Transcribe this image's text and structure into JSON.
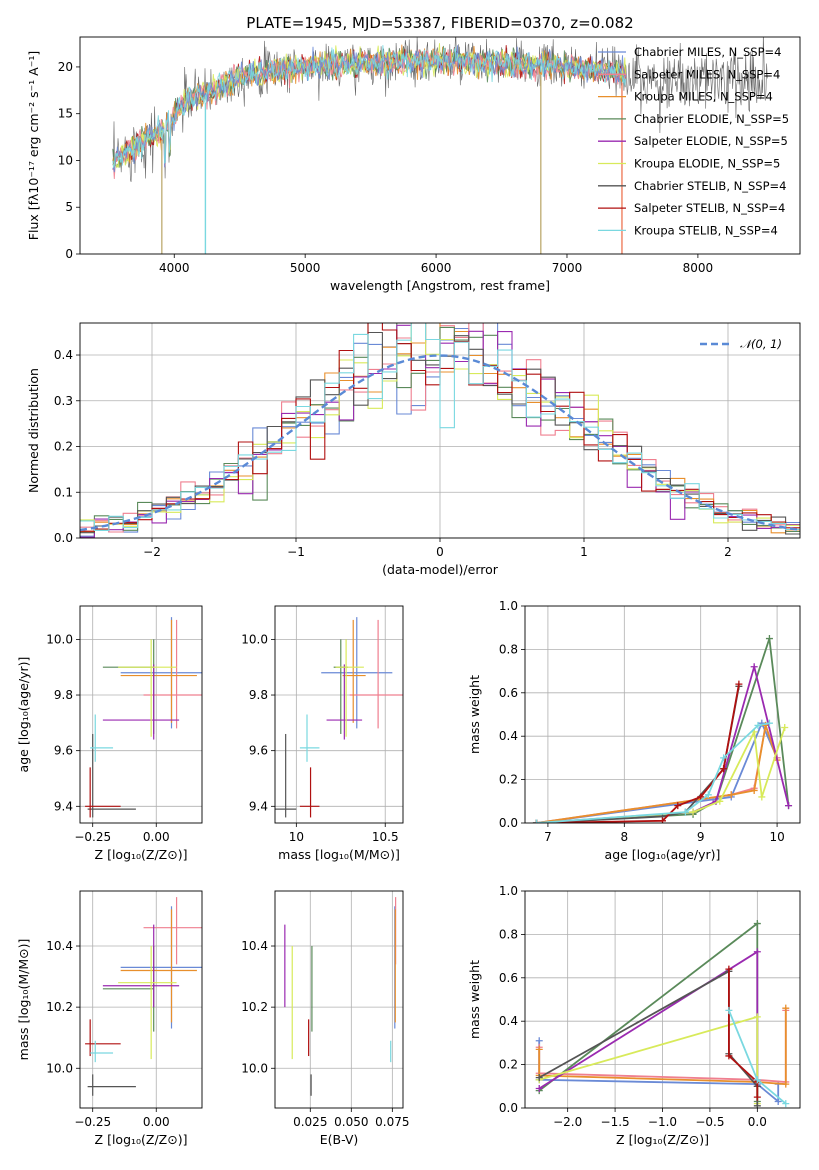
{
  "figure_title": "PLATE=1945, MJD=53387, FIBERID=0370, z=0.082",
  "colors": {
    "chabrier_miles": "#6a8ad6",
    "salpeter_miles": "#ef7f8f",
    "kroupa_miles": "#e88f2c",
    "chabrier_elodie": "#5a8a5a",
    "salpeter_elodie": "#9a2ab0",
    "kroupa_elodie": "#d8ea5a",
    "chabrier_stelib": "#555555",
    "salpeter_stelib": "#b01010",
    "kroupa_stelib": "#7ad8e0",
    "normal_curve": "#5a8ad6"
  },
  "chart_data": [
    {
      "type": "line",
      "title": "PLATE=1945, MJD=53387, FIBERID=0370, z=0.082",
      "xlabel": "wavelength [Angstrom, rest frame]",
      "ylabel": "Flux [fλ10⁻¹⁷ erg cm⁻² s⁻¹ A⁻¹]",
      "xlim": [
        3280,
        8780
      ],
      "ylim": [
        0,
        23.2
      ],
      "xticks": [
        "4000",
        "5000",
        "6000",
        "7000",
        "8000"
      ],
      "yticks": [
        "0",
        "5",
        "10",
        "15",
        "20"
      ],
      "legend_position": "right",
      "series": [
        {
          "name": "Chabrier MILES, N_SSP=4",
          "color_key": "chabrier_miles"
        },
        {
          "name": "Salpeter MILES, N_SSP=4",
          "color_key": "salpeter_miles"
        },
        {
          "name": "Kroupa MILES, N_SSP=4",
          "color_key": "kroupa_miles"
        },
        {
          "name": "Chabrier ELODIE, N_SSP=5",
          "color_key": "chabrier_elodie"
        },
        {
          "name": "Salpeter ELODIE, N_SSP=5",
          "color_key": "salpeter_elodie"
        },
        {
          "name": "Kroupa ELODIE, N_SSP=5",
          "color_key": "kroupa_elodie"
        },
        {
          "name": "Chabrier STELIB, N_SSP=4",
          "color_key": "chabrier_stelib"
        },
        {
          "name": "Salpeter STELIB, N_SSP=4",
          "color_key": "salpeter_stelib"
        },
        {
          "name": "Kroupa STELIB, N_SSP=4",
          "color_key": "kroupa_stelib"
        }
      ],
      "spectrum_continuum": {
        "x": [
          3530,
          3600,
          3700,
          3800,
          3900,
          4000,
          4100,
          4300,
          4500,
          4700,
          5000,
          5300,
          5600,
          5900,
          6200,
          6500,
          6800,
          7000,
          7200,
          7450
        ],
        "y": [
          9.5,
          10.5,
          11.5,
          12.5,
          13.0,
          15.0,
          16.5,
          17.5,
          19.0,
          19.5,
          20.0,
          20.3,
          20.5,
          20.7,
          20.6,
          20.3,
          20.2,
          20.0,
          19.7,
          19.3
        ]
      },
      "sky_lines": {
        "x": [
          3905,
          4238,
          6800,
          7420
        ]
      },
      "observed_extent": {
        "x": [
          3530,
          8530
        ]
      }
    },
    {
      "type": "histogram",
      "xlabel": "(data-model)/error",
      "ylabel": "Normed distribution",
      "xlim": [
        -2.5,
        2.5
      ],
      "ylim": [
        0,
        0.47
      ],
      "xticks": [
        "−2",
        "−1",
        "0",
        "1",
        "2"
      ],
      "yticks": [
        "0.0",
        "0.1",
        "0.2",
        "0.3",
        "0.4"
      ],
      "legend": "𝒩(0, 1)",
      "legend_position": "top-right",
      "bin_width": 0.1,
      "bin_start": -2.5
    },
    {
      "type": "scatter",
      "xlabel": "Z [log₁₀(Z/Z⊙)]",
      "ylabel": "age  [log₁₀(age/yr)]",
      "xlim": [
        -0.3,
        0.18
      ],
      "ylim": [
        9.34,
        10.12
      ],
      "xticks": [
        "−0.25",
        "0.00"
      ],
      "yticks": [
        "9.4",
        "9.6",
        "9.8",
        "10.0"
      ],
      "points": [
        {
          "x": 0.06,
          "y": 9.88,
          "xerr": [
            0.2,
            0.25
          ],
          "yerr": [
            0.2,
            0.2
          ],
          "c": "chabrier_miles"
        },
        {
          "x": 0.08,
          "y": 9.8,
          "xerr": [
            0.13,
            0.13
          ],
          "yerr": [
            0.12,
            0.27
          ],
          "c": "salpeter_miles"
        },
        {
          "x": 0.06,
          "y": 9.87,
          "xerr": [
            0.2,
            0.1
          ],
          "yerr": [
            0.17,
            0.2
          ],
          "c": "kroupa_miles"
        },
        {
          "x": -0.01,
          "y": 9.9,
          "xerr": [
            0.2,
            0.0
          ],
          "yerr": [
            0.24,
            0.1
          ],
          "c": "chabrier_elodie"
        },
        {
          "x": -0.01,
          "y": 9.71,
          "xerr": [
            0.2,
            0.1
          ],
          "yerr": [
            0.07,
            0.2
          ],
          "c": "salpeter_elodie"
        },
        {
          "x": -0.02,
          "y": 9.9,
          "xerr": [
            0.13,
            0.1
          ],
          "yerr": [
            0.25,
            0.1
          ],
          "c": "kroupa_elodie"
        },
        {
          "x": -0.25,
          "y": 9.39,
          "xerr": [
            0.02,
            0.17
          ],
          "yerr": [
            0.03,
            0.27
          ],
          "c": "chabrier_stelib"
        },
        {
          "x": -0.26,
          "y": 9.4,
          "xerr": [
            0.02,
            0.12
          ],
          "yerr": [
            0.04,
            0.14
          ],
          "c": "salpeter_stelib"
        },
        {
          "x": -0.24,
          "y": 9.61,
          "xerr": [
            0.02,
            0.07
          ],
          "yerr": [
            0.05,
            0.12
          ],
          "c": "kroupa_stelib"
        }
      ]
    },
    {
      "type": "scatter",
      "xlabel": "mass [log₁₀(M/M⊙)]",
      "ylabel": "",
      "xlim": [
        9.88,
        10.6
      ],
      "ylim": [
        9.34,
        10.12
      ],
      "xticks": [
        "10",
        "10.5"
      ],
      "yticks": [
        "9.4",
        "9.6",
        "9.8",
        "10.0"
      ],
      "points": [
        {
          "x": 10.34,
          "y": 9.88,
          "xerr": [
            0.2,
            0.2
          ],
          "yerr": [
            0.2,
            0.2
          ],
          "c": "chabrier_miles"
        },
        {
          "x": 10.46,
          "y": 9.8,
          "xerr": [
            0.16,
            0.14
          ],
          "yerr": [
            0.12,
            0.27
          ],
          "c": "salpeter_miles"
        },
        {
          "x": 10.32,
          "y": 9.87,
          "xerr": [
            0.06,
            0.07
          ],
          "yerr": [
            0.17,
            0.2
          ],
          "c": "kroupa_miles"
        },
        {
          "x": 10.25,
          "y": 9.9,
          "xerr": [
            0.04,
            0.04
          ],
          "yerr": [
            0.24,
            0.1
          ],
          "c": "chabrier_elodie"
        },
        {
          "x": 10.27,
          "y": 9.71,
          "xerr": [
            0.1,
            0.1
          ],
          "yerr": [
            0.07,
            0.2
          ],
          "c": "salpeter_elodie"
        },
        {
          "x": 10.28,
          "y": 9.9,
          "xerr": [
            0.06,
            0.1
          ],
          "yerr": [
            0.25,
            0.1
          ],
          "c": "kroupa_elodie"
        },
        {
          "x": 9.94,
          "y": 9.39,
          "xerr": [
            0.07,
            0.06
          ],
          "yerr": [
            0.03,
            0.27
          ],
          "c": "chabrier_stelib"
        },
        {
          "x": 10.08,
          "y": 9.4,
          "xerr": [
            0.06,
            0.05
          ],
          "yerr": [
            0.04,
            0.14
          ],
          "c": "salpeter_stelib"
        },
        {
          "x": 10.06,
          "y": 9.61,
          "xerr": [
            0.04,
            0.07
          ],
          "yerr": [
            0.05,
            0.12
          ],
          "c": "kroupa_stelib"
        }
      ]
    },
    {
      "type": "line",
      "xlabel": "age  [log₁₀(age/yr)]",
      "ylabel": "mass weight",
      "xlim": [
        6.7,
        10.3
      ],
      "ylim": [
        0,
        1.0
      ],
      "xticks": [
        "7",
        "8",
        "9",
        "10"
      ],
      "yticks": [
        "0.0",
        "0.2",
        "0.4",
        "0.6",
        "0.8",
        "1.0"
      ],
      "series": [
        {
          "c": "chabrier_miles",
          "x": [
            6.85,
            9.4,
            9.8,
            10.0
          ],
          "y": [
            0.0,
            0.12,
            0.46,
            0.3
          ]
        },
        {
          "c": "salpeter_miles",
          "x": [
            6.85,
            9.4,
            9.7,
            9.85,
            10.0
          ],
          "y": [
            0.0,
            0.13,
            0.16,
            0.45,
            0.3
          ]
        },
        {
          "c": "kroupa_miles",
          "x": [
            6.85,
            9.4,
            9.7,
            9.85,
            10.0
          ],
          "y": [
            0.0,
            0.13,
            0.15,
            0.45,
            0.29
          ]
        },
        {
          "c": "chabrier_elodie",
          "x": [
            6.85,
            8.9,
            9.2,
            9.9,
            10.15
          ],
          "y": [
            0.0,
            0.04,
            0.1,
            0.85,
            0.08
          ]
        },
        {
          "c": "salpeter_elodie",
          "x": [
            6.85,
            8.9,
            9.2,
            9.7,
            10.15
          ],
          "y": [
            0.0,
            0.05,
            0.1,
            0.72,
            0.08
          ]
        },
        {
          "c": "kroupa_elodie",
          "x": [
            6.85,
            8.9,
            9.25,
            9.7,
            9.8,
            10.1
          ],
          "y": [
            0.0,
            0.05,
            0.1,
            0.42,
            0.12,
            0.44
          ]
        },
        {
          "c": "chabrier_stelib",
          "x": [
            6.85,
            8.5,
            8.8,
            9.3,
            9.5
          ],
          "y": [
            0.0,
            0.03,
            0.05,
            0.25,
            0.63
          ]
        },
        {
          "c": "salpeter_stelib",
          "x": [
            6.85,
            8.5,
            8.7,
            9.0,
            9.3,
            9.5
          ],
          "y": [
            0.0,
            0.01,
            0.08,
            0.12,
            0.25,
            0.64
          ]
        },
        {
          "c": "kroupa_stelib",
          "x": [
            6.85,
            8.8,
            9.1,
            9.3,
            9.75,
            9.9
          ],
          "y": [
            0.0,
            0.05,
            0.13,
            0.3,
            0.45,
            0.46
          ]
        }
      ]
    },
    {
      "type": "scatter",
      "xlabel": "Z [log₁₀(Z/Z⊙)]",
      "ylabel": "mass [log₁₀(M/M⊙)]",
      "xlim": [
        -0.3,
        0.18
      ],
      "ylim": [
        9.87,
        10.58
      ],
      "xticks": [
        "−0.25",
        "0.00"
      ],
      "yticks": [
        "10.0",
        "10.2",
        "10.4"
      ],
      "points": [
        {
          "x": 0.06,
          "y": 10.33,
          "xerr": [
            0.2,
            0.25
          ],
          "yerr": [
            0.2,
            0.2
          ],
          "c": "chabrier_miles"
        },
        {
          "x": 0.08,
          "y": 10.46,
          "xerr": [
            0.13,
            0.13
          ],
          "yerr": [
            0.12,
            0.1
          ],
          "c": "salpeter_miles"
        },
        {
          "x": 0.06,
          "y": 10.32,
          "xerr": [
            0.2,
            0.1
          ],
          "yerr": [
            0.17,
            0.2
          ],
          "c": "kroupa_miles"
        },
        {
          "x": -0.01,
          "y": 10.26,
          "xerr": [
            0.2,
            0.0
          ],
          "yerr": [
            0.14,
            0.14
          ],
          "c": "chabrier_elodie"
        },
        {
          "x": -0.01,
          "y": 10.27,
          "xerr": [
            0.2,
            0.1
          ],
          "yerr": [
            0.07,
            0.2
          ],
          "c": "salpeter_elodie"
        },
        {
          "x": -0.02,
          "y": 10.28,
          "xerr": [
            0.13,
            0.1
          ],
          "yerr": [
            0.25,
            0.12
          ],
          "c": "kroupa_elodie"
        },
        {
          "x": -0.25,
          "y": 9.94,
          "xerr": [
            0.02,
            0.17
          ],
          "yerr": [
            0.03,
            0.04
          ],
          "c": "chabrier_stelib"
        },
        {
          "x": -0.26,
          "y": 10.08,
          "xerr": [
            0.02,
            0.12
          ],
          "yerr": [
            0.04,
            0.08
          ],
          "c": "salpeter_stelib"
        },
        {
          "x": -0.24,
          "y": 10.05,
          "xerr": [
            0.02,
            0.07
          ],
          "yerr": [
            0.03,
            0.04
          ],
          "c": "kroupa_stelib"
        }
      ]
    },
    {
      "type": "scatter",
      "xlabel": "E(B-V)",
      "ylabel": "",
      "xlim": [
        0.0035,
        0.0815
      ],
      "ylim": [
        9.87,
        10.58
      ],
      "xticks": [
        "0.025",
        "0.050",
        "0.075"
      ],
      "yticks": [
        "10.0",
        "10.2",
        "10.4"
      ],
      "points": [
        {
          "x": 0.0765,
          "y": 10.33,
          "yerr": [
            0.2,
            0.2
          ],
          "c": "chabrier_miles"
        },
        {
          "x": 0.077,
          "y": 10.46,
          "yerr": [
            0.12,
            0.1
          ],
          "c": "salpeter_miles"
        },
        {
          "x": 0.0768,
          "y": 10.32,
          "yerr": [
            0.17,
            0.2
          ],
          "c": "kroupa_miles"
        },
        {
          "x": 0.026,
          "y": 10.26,
          "yerr": [
            0.14,
            0.14
          ],
          "c": "chabrier_elodie"
        },
        {
          "x": 0.0095,
          "y": 10.27,
          "yerr": [
            0.07,
            0.2
          ],
          "c": "salpeter_elodie"
        },
        {
          "x": 0.014,
          "y": 10.28,
          "yerr": [
            0.25,
            0.12
          ],
          "c": "kroupa_elodie"
        },
        {
          "x": 0.0255,
          "y": 9.94,
          "yerr": [
            0.03,
            0.04
          ],
          "c": "chabrier_stelib"
        },
        {
          "x": 0.024,
          "y": 10.08,
          "yerr": [
            0.04,
            0.08
          ],
          "c": "salpeter_stelib"
        },
        {
          "x": 0.074,
          "y": 10.05,
          "yerr": [
            0.03,
            0.04
          ],
          "c": "kroupa_stelib"
        }
      ]
    },
    {
      "type": "line",
      "xlabel": "Z [log₁₀(Z/Z⊙)]",
      "ylabel": "mass weight",
      "xlim": [
        -2.45,
        0.45
      ],
      "ylim": [
        0,
        1.0
      ],
      "xticks": [
        "−2.0",
        "−1.5",
        "−1.0",
        "−0.5",
        "0.0"
      ],
      "yticks": [
        "0.0",
        "0.2",
        "0.4",
        "0.6",
        "0.8",
        "1.0"
      ],
      "series": [
        {
          "c": "chabrier_miles",
          "x": [
            -2.3,
            -2.3,
            0.0,
            0.22,
            0.22
          ],
          "y": [
            0.31,
            0.13,
            0.11,
            0.03,
            0.11
          ]
        },
        {
          "c": "salpeter_miles",
          "x": [
            -2.3,
            -2.3,
            0.0,
            0.3,
            0.3
          ],
          "y": [
            0.28,
            0.16,
            0.13,
            0.12,
            0.45
          ]
        },
        {
          "c": "kroupa_miles",
          "x": [
            -2.3,
            -2.3,
            0.0,
            0.3,
            0.3
          ],
          "y": [
            0.27,
            0.15,
            0.12,
            0.11,
            0.46
          ]
        },
        {
          "c": "chabrier_elodie",
          "x": [
            -2.3,
            -0.0,
            -0.0
          ],
          "y": [
            0.08,
            0.85,
            0.03
          ]
        },
        {
          "c": "salpeter_elodie",
          "x": [
            -2.3,
            -0.0,
            -0.0
          ],
          "y": [
            0.09,
            0.72,
            0.1
          ]
        },
        {
          "c": "kroupa_elodie",
          "x": [
            -2.3,
            -0.0,
            -0.0
          ],
          "y": [
            0.13,
            0.42,
            0.02
          ]
        },
        {
          "c": "chabrier_stelib",
          "x": [
            -2.3,
            -0.3,
            -0.3,
            0.0,
            0.0
          ],
          "y": [
            0.14,
            0.63,
            0.25,
            0.1,
            0.01
          ]
        },
        {
          "c": "salpeter_stelib",
          "x": [
            -0.3,
            -0.3,
            0.0,
            0.0
          ],
          "y": [
            0.64,
            0.24,
            0.12,
            0.05
          ]
        },
        {
          "c": "kroupa_stelib",
          "x": [
            -0.3,
            0.0,
            0.3
          ],
          "y": [
            0.45,
            0.13,
            0.02
          ]
        }
      ]
    }
  ]
}
